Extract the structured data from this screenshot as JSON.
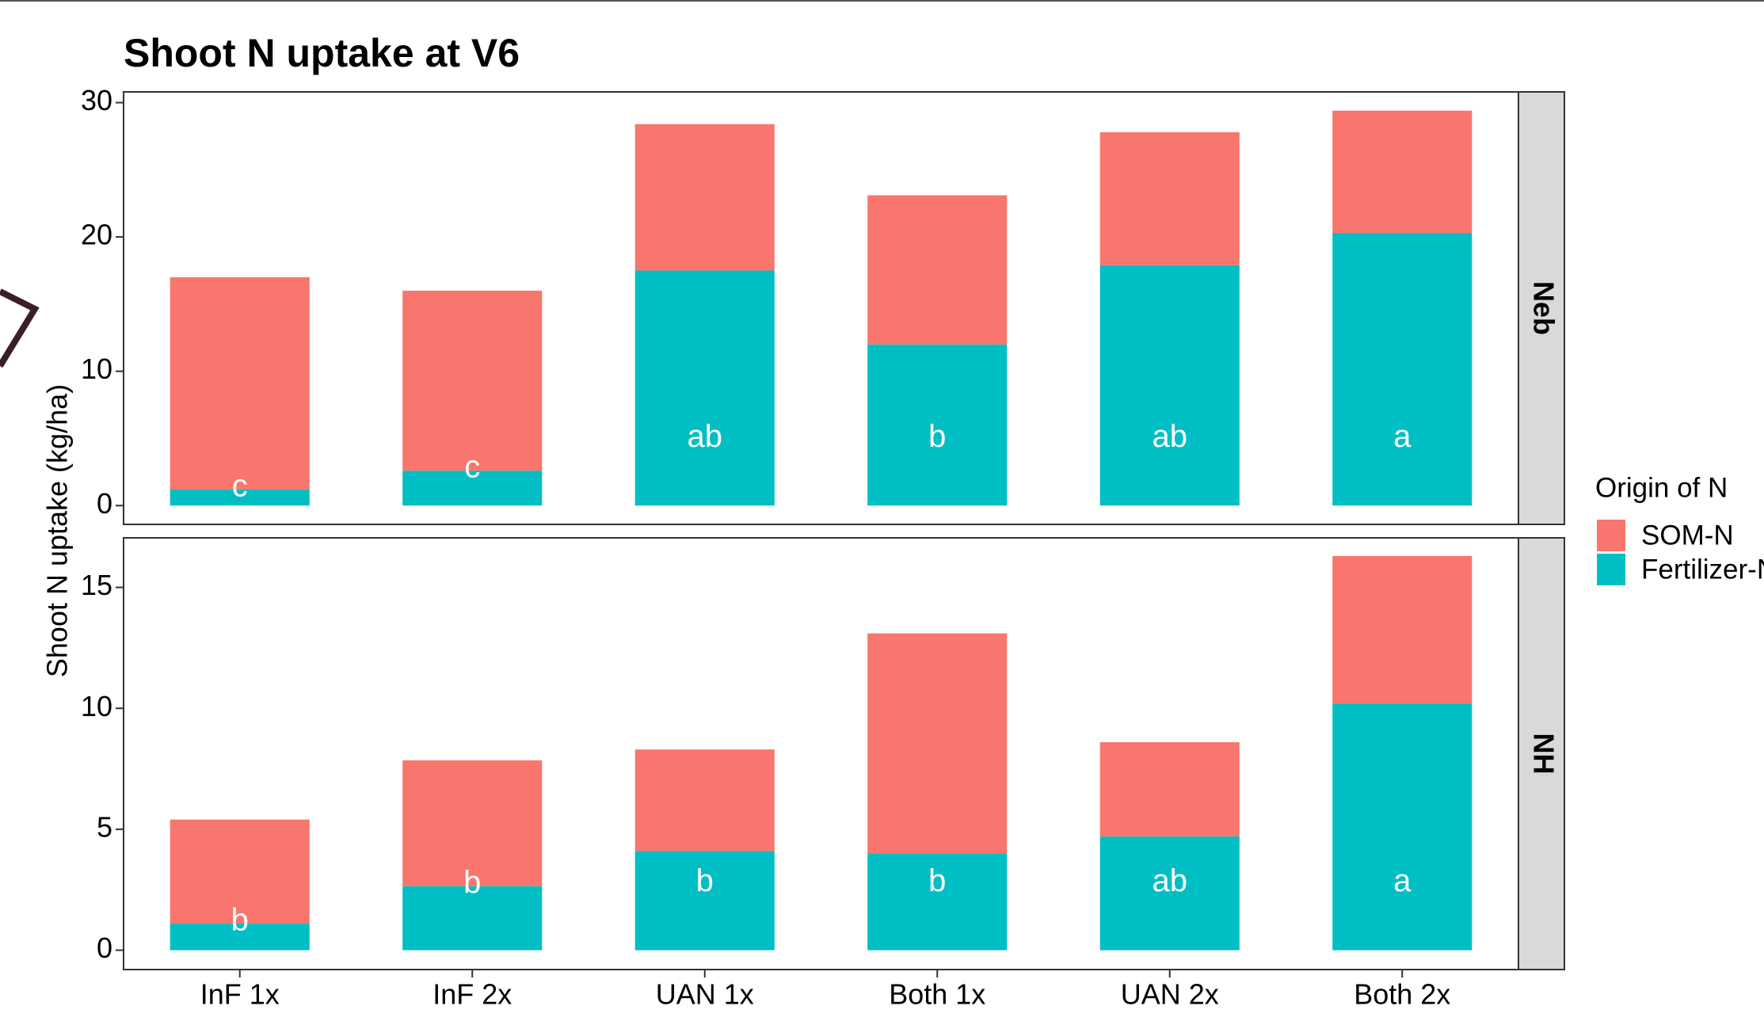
{
  "chart_data": {
    "type": "bar",
    "stacked": true,
    "grid": false,
    "title": "Shoot N uptake at V6",
    "ylabel": "Shoot N uptake (kg/ha)",
    "legend_title": "Origin of N",
    "legend": "right",
    "categories": [
      "InF 1x",
      "InF 2x",
      "UAN 1x",
      "Both 1x",
      "UAN 2x",
      "Both 2x"
    ],
    "series": [
      {
        "name": "SOM-N",
        "color": "#F8766D"
      },
      {
        "name": "Fertilizer-N",
        "color": "#00BFC4"
      }
    ],
    "facets": [
      {
        "label": "Neb",
        "ylim": [
          -1.4,
          30.8
        ],
        "yticks": [
          0,
          10,
          20,
          30
        ],
        "series": [
          {
            "values": [
              15.8,
              13.4,
              10.9,
              11.1,
              9.9,
              9.1
            ]
          },
          {
            "values": [
              1.2,
              2.6,
              17.5,
              12.0,
              17.9,
              20.3
            ]
          }
        ],
        "letters": [
          "c",
          "c",
          "ab",
          "b",
          "ab",
          "a"
        ]
      },
      {
        "label": "NH",
        "ylim": [
          -0.8,
          17.05
        ],
        "yticks": [
          0,
          5,
          10,
          15
        ],
        "series": [
          {
            "values": [
              4.3,
              5.2,
              4.2,
              9.1,
              3.9,
              6.1
            ]
          },
          {
            "values": [
              1.1,
              2.65,
              4.1,
              4.0,
              4.7,
              10.2
            ]
          }
        ],
        "letters": [
          "b",
          "b",
          "b",
          "b",
          "ab",
          "a"
        ]
      }
    ]
  }
}
